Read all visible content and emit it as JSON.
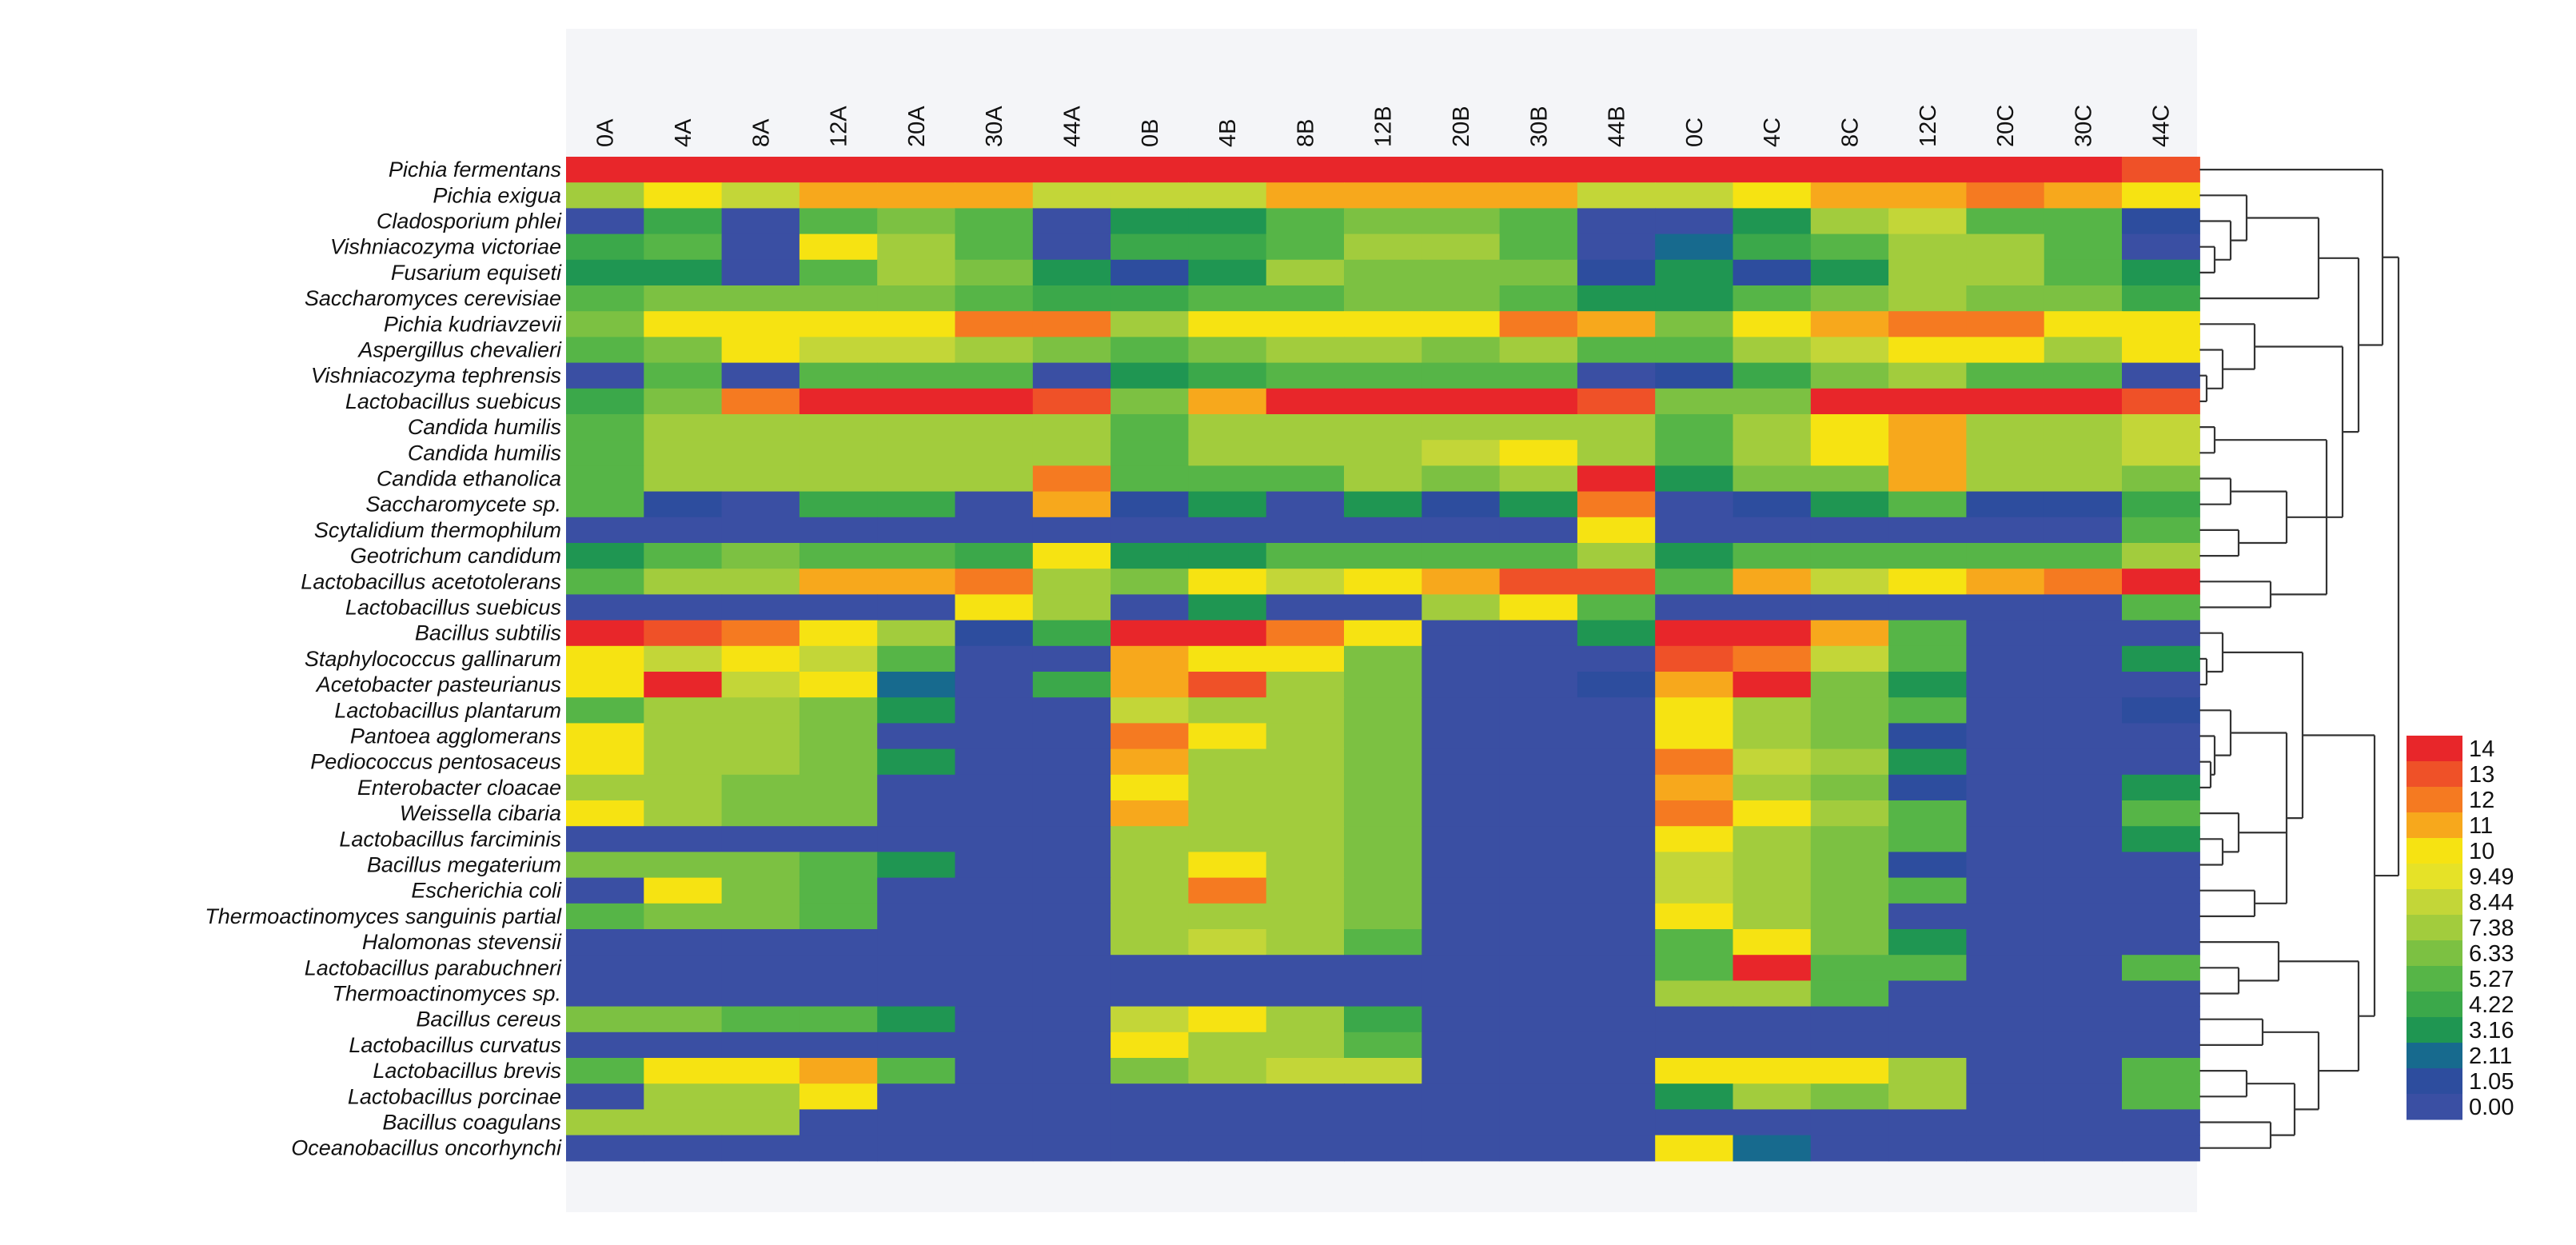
{
  "chart_data": {
    "type": "heatmap",
    "columns": [
      "0A",
      "4A",
      "8A",
      "12A",
      "20A",
      "30A",
      "44A",
      "0B",
      "4B",
      "8B",
      "12B",
      "20B",
      "30B",
      "44B",
      "0C",
      "4C",
      "8C",
      "12C",
      "20C",
      "30C",
      "44C"
    ],
    "rows": [
      "Pichia fermentans",
      "Pichia exigua",
      "Cladosporium phlei",
      "Vishniacozyma victoriae",
      "Fusarium equiseti",
      "Saccharomyces cerevisiae",
      "Pichia kudriavzevii",
      "Aspergillus chevalieri",
      "Vishniacozyma tephrensis",
      "Lactobacillus suebicus",
      "Candida humilis",
      "Candida humilis",
      "Candida ethanolica",
      "Saccharomycete sp.",
      "Scytalidium thermophilum",
      "Geotrichum candidum",
      "Lactobacillus acetotolerans",
      "Lactobacillus suebicus",
      "Bacillus subtilis",
      "Staphylococcus gallinarum",
      "Acetobacter pasteurianus",
      "Lactobacillus plantarum",
      "Pantoea agglomerans",
      "Pediococcus pentosaceus",
      "Enterobacter cloacae",
      "Weissella cibaria",
      "Lactobacillus farciminis",
      "Bacillus megaterium",
      "Escherichia coli",
      "Thermoactinomyces sanguinis partial",
      "Halomonas stevensii",
      "Lactobacillus parabuchneri",
      "Thermoactinomyces sp.",
      "Bacillus cereus",
      "Lactobacillus curvatus",
      "Lactobacillus brevis",
      "Lactobacillus porcinae",
      "Bacillus coagulans",
      "Oceanobacillus oncorhynchi"
    ],
    "values": [
      [
        14,
        14,
        14,
        14,
        14,
        14,
        14,
        14,
        14,
        14,
        14,
        14,
        14,
        14,
        14,
        14,
        14,
        14,
        14,
        14,
        13
      ],
      [
        8,
        10,
        9,
        11,
        11,
        11,
        9,
        9,
        9,
        11,
        11,
        11,
        11,
        9,
        9,
        10,
        11,
        11,
        12,
        11,
        10
      ],
      [
        1,
        5,
        1,
        6,
        7,
        6,
        1,
        4,
        4,
        6,
        7,
        7,
        6,
        1,
        1,
        4,
        8,
        9,
        6,
        6,
        2
      ],
      [
        5,
        6,
        1,
        10,
        8,
        6,
        1,
        5,
        5,
        6,
        8,
        8,
        6,
        1,
        3,
        5,
        6,
        8,
        8,
        6,
        1
      ],
      [
        4,
        4,
        1,
        6,
        8,
        7,
        4,
        2,
        4,
        8,
        7,
        7,
        7,
        2,
        4,
        2,
        4,
        8,
        8,
        6,
        4
      ],
      [
        6,
        7,
        7,
        7,
        7,
        6,
        5,
        5,
        6,
        6,
        7,
        7,
        6,
        4,
        4,
        6,
        7,
        8,
        7,
        7,
        5
      ],
      [
        7,
        10,
        10,
        10,
        10,
        12,
        12,
        8,
        10,
        10,
        10,
        10,
        12,
        11,
        7,
        10,
        11,
        12,
        12,
        10,
        10
      ],
      [
        6,
        7,
        10,
        9,
        9,
        8,
        7,
        6,
        7,
        8,
        8,
        7,
        8,
        6,
        6,
        8,
        9,
        10,
        10,
        8,
        10
      ],
      [
        1,
        6,
        1,
        6,
        6,
        6,
        1,
        4,
        5,
        6,
        6,
        6,
        6,
        1,
        2,
        5,
        7,
        8,
        6,
        6,
        1
      ],
      [
        5,
        7,
        12,
        14,
        14,
        14,
        13,
        7,
        11,
        14,
        14,
        14,
        14,
        13,
        7,
        7,
        14,
        14,
        14,
        14,
        13
      ],
      [
        6,
        8,
        8,
        8,
        8,
        8,
        8,
        6,
        8,
        8,
        8,
        8,
        8,
        8,
        6,
        8,
        10,
        11,
        8,
        8,
        9
      ],
      [
        6,
        8,
        8,
        8,
        8,
        8,
        8,
        6,
        8,
        8,
        8,
        9,
        10,
        8,
        6,
        8,
        10,
        11,
        8,
        8,
        9
      ],
      [
        6,
        8,
        8,
        8,
        8,
        8,
        12,
        6,
        6,
        6,
        8,
        7,
        8,
        14,
        4,
        7,
        7,
        11,
        8,
        8,
        7
      ],
      [
        6,
        2,
        1,
        5,
        5,
        1,
        11,
        2,
        4,
        1,
        4,
        2,
        4,
        12,
        1,
        2,
        4,
        6,
        2,
        2,
        5
      ],
      [
        1,
        1,
        1,
        1,
        1,
        1,
        1,
        1,
        1,
        1,
        1,
        1,
        1,
        10,
        1,
        1,
        1,
        1,
        1,
        1,
        6
      ],
      [
        4,
        6,
        7,
        6,
        6,
        5,
        10,
        4,
        4,
        6,
        6,
        6,
        6,
        8,
        4,
        6,
        6,
        6,
        6,
        6,
        8
      ],
      [
        6,
        8,
        8,
        11,
        11,
        12,
        8,
        7,
        10,
        9,
        10,
        11,
        13,
        13,
        6,
        11,
        9,
        10,
        11,
        12,
        14
      ],
      [
        1,
        1,
        1,
        1,
        1,
        10,
        8,
        1,
        4,
        1,
        1,
        8,
        10,
        6,
        1,
        1,
        1,
        1,
        1,
        1,
        6
      ],
      [
        14,
        13,
        12,
        10,
        8,
        2,
        5,
        14,
        14,
        12,
        10,
        1,
        1,
        4,
        14,
        14,
        11,
        6,
        1,
        1,
        1
      ],
      [
        10,
        9,
        10,
        9,
        6,
        1,
        1,
        11,
        10,
        10,
        7,
        1,
        1,
        1,
        13,
        12,
        9,
        6,
        1,
        1,
        4
      ],
      [
        10,
        14,
        9,
        10,
        3,
        1,
        5,
        11,
        13,
        8,
        7,
        1,
        1,
        2,
        11,
        14,
        7,
        4,
        1,
        1,
        1
      ],
      [
        6,
        8,
        8,
        7,
        4,
        1,
        1,
        9,
        8,
        8,
        7,
        1,
        1,
        1,
        10,
        8,
        7,
        6,
        1,
        1,
        2
      ],
      [
        10,
        8,
        8,
        7,
        1,
        1,
        1,
        12,
        10,
        8,
        7,
        1,
        1,
        1,
        10,
        8,
        7,
        2,
        1,
        1,
        1
      ],
      [
        10,
        8,
        8,
        7,
        4,
        1,
        1,
        11,
        8,
        8,
        7,
        1,
        1,
        1,
        12,
        9,
        8,
        4,
        1,
        1,
        1
      ],
      [
        8,
        8,
        7,
        7,
        1,
        1,
        1,
        10,
        8,
        8,
        7,
        1,
        1,
        1,
        11,
        8,
        7,
        2,
        1,
        1,
        4
      ],
      [
        10,
        8,
        7,
        7,
        1,
        1,
        1,
        11,
        8,
        8,
        7,
        1,
        1,
        1,
        12,
        10,
        8,
        6,
        1,
        1,
        6
      ],
      [
        1,
        1,
        1,
        1,
        1,
        1,
        1,
        8,
        8,
        8,
        7,
        1,
        1,
        1,
        10,
        8,
        7,
        6,
        1,
        1,
        4
      ],
      [
        7,
        7,
        7,
        6,
        4,
        1,
        1,
        8,
        10,
        8,
        7,
        1,
        1,
        1,
        9,
        8,
        7,
        2,
        1,
        1,
        1
      ],
      [
        1,
        10,
        7,
        6,
        1,
        1,
        1,
        8,
        12,
        8,
        7,
        1,
        1,
        1,
        9,
        8,
        7,
        6,
        1,
        1,
        1
      ],
      [
        6,
        7,
        7,
        6,
        1,
        1,
        1,
        8,
        8,
        8,
        7,
        1,
        1,
        1,
        10,
        8,
        7,
        1,
        1,
        1,
        1
      ],
      [
        1,
        1,
        1,
        1,
        1,
        1,
        1,
        8,
        9,
        8,
        6,
        1,
        1,
        1,
        6,
        10,
        7,
        4,
        1,
        1,
        1
      ],
      [
        1,
        1,
        1,
        1,
        1,
        1,
        1,
        1,
        1,
        1,
        1,
        1,
        1,
        1,
        6,
        14,
        6,
        6,
        1,
        1,
        6
      ],
      [
        1,
        1,
        1,
        1,
        1,
        1,
        1,
        1,
        1,
        1,
        1,
        1,
        1,
        1,
        8,
        8,
        6,
        1,
        1,
        1,
        1
      ],
      [
        7,
        7,
        6,
        6,
        4,
        1,
        1,
        9,
        10,
        8,
        5,
        1,
        1,
        1,
        1,
        1,
        1,
        1,
        1,
        1,
        1
      ],
      [
        1,
        1,
        1,
        1,
        1,
        1,
        1,
        10,
        8,
        8,
        6,
        1,
        1,
        1,
        1,
        1,
        1,
        1,
        1,
        1,
        1
      ],
      [
        6,
        10,
        10,
        11,
        6,
        1,
        1,
        7,
        8,
        9,
        9,
        1,
        1,
        1,
        10,
        10,
        10,
        8,
        1,
        1,
        6
      ],
      [
        1,
        8,
        8,
        10,
        1,
        1,
        1,
        1,
        1,
        1,
        1,
        1,
        1,
        1,
        4,
        8,
        7,
        8,
        1,
        1,
        6
      ],
      [
        8,
        8,
        8,
        1,
        1,
        1,
        1,
        1,
        1,
        1,
        1,
        1,
        1,
        1,
        1,
        1,
        1,
        1,
        1,
        1,
        1
      ],
      [
        1,
        1,
        1,
        1,
        1,
        1,
        1,
        1,
        1,
        1,
        1,
        1,
        1,
        1,
        10,
        3,
        1,
        1,
        1,
        1,
        1
      ]
    ],
    "legend": {
      "labels": [
        "14",
        "13",
        "12",
        "11",
        "10",
        "9.49",
        "8.44",
        "7.38",
        "6.33",
        "5.27",
        "4.22",
        "3.16",
        "2.11",
        "1.05",
        "0.00"
      ],
      "colors": [
        "#e8262a",
        "#ef5128",
        "#f57a21",
        "#f7a81c",
        "#f6e312",
        "#e6e227",
        "#c3d638",
        "#a2cc3d",
        "#7cc142",
        "#56b547",
        "#3ba84a",
        "#1f9652",
        "#176a8e",
        "#2d4d9e",
        "#3a4fa3"
      ]
    },
    "scale_min": 0,
    "scale_max": 14
  }
}
